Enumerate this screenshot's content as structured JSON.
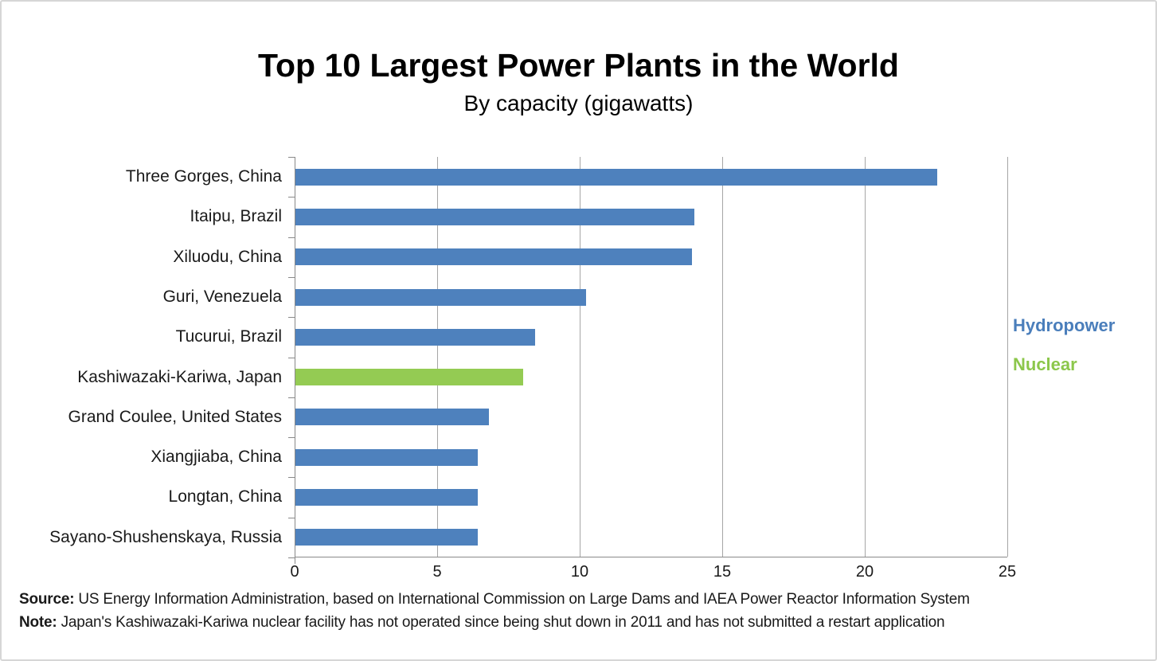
{
  "page": {
    "title": "Top 10 Largest Power Plants in the World",
    "subtitle": "By capacity (gigawatts)"
  },
  "legend": {
    "position": "right",
    "items": [
      {
        "label": "Hydropower",
        "text_color": "#4A7EBB",
        "bar_color": "#4E81BD"
      },
      {
        "label": "Nuclear",
        "text_color": "#8CC74B",
        "bar_color": "#94CB53"
      }
    ]
  },
  "chart_data": {
    "type": "bar",
    "orientation": "horizontal",
    "title": "Top 10 Largest Power Plants in the World",
    "subtitle": "By capacity (gigawatts)",
    "unit": "gigawatts",
    "categories": [
      "Three Gorges, China",
      "Itaipu, Brazil",
      "Xiluodu, China",
      "Guri, Venezuela",
      "Tucurui, Brazil",
      "Kashiwazaki-Kariwa, Japan",
      "Grand Coulee, United States",
      "Xiangjiaba, China",
      "Longtan, China",
      "Sayano-Shushenskaya, Russia"
    ],
    "values": [
      22.5,
      14,
      13.9,
      10.2,
      8.4,
      8,
      6.8,
      6.4,
      6.4,
      6.4
    ],
    "series_by_category": [
      "Hydropower",
      "Hydropower",
      "Hydropower",
      "Hydropower",
      "Hydropower",
      "Nuclear",
      "Hydropower",
      "Hydropower",
      "Hydropower",
      "Hydropower"
    ],
    "xlabel": "",
    "ylabel": "",
    "xlim": [
      0,
      25
    ],
    "xticks": [
      0,
      5,
      10,
      15,
      20,
      25
    ],
    "grid": true,
    "legend_position": "right",
    "colors": {
      "grid": "#A6A6A6",
      "axis": "#898989",
      "label": "#1A1A1A"
    }
  },
  "footer": {
    "source_label": "Source:",
    "source_text": "US Energy Information Administration, based on International Commission on Large Dams and IAEA Power Reactor Information System",
    "note_label": "Note:",
    "note_text": "Japan's Kashiwazaki-Kariwa nuclear facility has not operated since being shut down in 2011 and has not submitted a restart application"
  }
}
